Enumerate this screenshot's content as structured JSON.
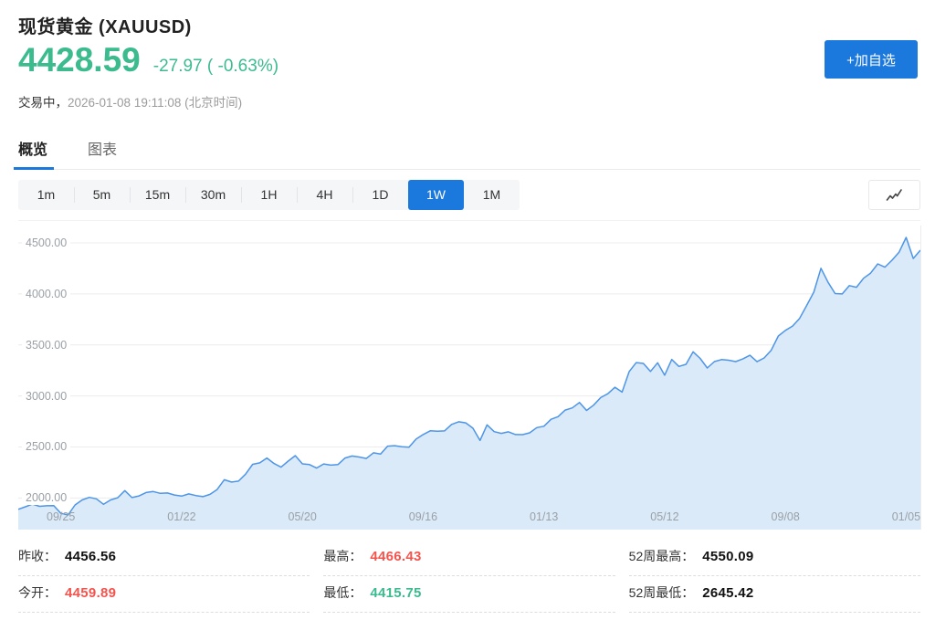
{
  "colors": {
    "accent_blue": "#1b78dc",
    "green": "#3bbb8e",
    "red": "#f4544d",
    "default_value": "#111111",
    "chart_line": "#4d95e7",
    "chart_fill": "#dbeaf9",
    "grid": "#ececec"
  },
  "header": {
    "title": "现货黄金 (XAUUSD)",
    "price": "4428.59",
    "change": "-27.97 ( -0.63%)",
    "status_label": "交易中，",
    "status_time": "2026-01-08 19:11:08 (北京时间)",
    "add_watchlist_label": "+加自选"
  },
  "tabs": [
    {
      "id": "overview",
      "label": "概览",
      "active": true
    },
    {
      "id": "chart",
      "label": "图表",
      "active": false
    }
  ],
  "timeframes": {
    "options": [
      "1m",
      "5m",
      "15m",
      "30m",
      "1H",
      "4H",
      "1D",
      "1W",
      "1M"
    ],
    "active": "1W"
  },
  "chart_data": {
    "type": "area",
    "series_name": "XAUUSD 1W",
    "grid": "horizontal",
    "legend": "none",
    "ylim": [
      1690,
      4670
    ],
    "y_ticks": [
      {
        "value": 4500,
        "label": "4500.00"
      },
      {
        "value": 4000,
        "label": "4000.00"
      },
      {
        "value": 3500,
        "label": "3500.00"
      },
      {
        "value": 3000,
        "label": "3000.00"
      },
      {
        "value": 2500,
        "label": "2500.00"
      },
      {
        "value": 2000,
        "label": "2000.00"
      }
    ],
    "x_ticks": [
      {
        "index": 6,
        "label": "09/25"
      },
      {
        "index": 23,
        "label": "01/22"
      },
      {
        "index": 40,
        "label": "05/20"
      },
      {
        "index": 57,
        "label": "09/16"
      },
      {
        "index": 74,
        "label": "01/13"
      },
      {
        "index": 91,
        "label": "05/12"
      },
      {
        "index": 108,
        "label": "09/08"
      },
      {
        "index": 125,
        "label": "01/05"
      }
    ],
    "values": [
      1889,
      1914,
      1940,
      1918,
      1924,
      1925,
      1849,
      1833,
      1932,
      1981,
      2006,
      1992,
      1938,
      1981,
      2002,
      2072,
      2004,
      2020,
      2053,
      2063,
      2045,
      2049,
      2029,
      2018,
      2040,
      2024,
      2013,
      2035,
      2083,
      2179,
      2156,
      2165,
      2233,
      2330,
      2344,
      2392,
      2338,
      2302,
      2361,
      2415,
      2334,
      2327,
      2293,
      2333,
      2322,
      2327,
      2392,
      2411,
      2401,
      2387,
      2443,
      2431,
      2508,
      2512,
      2503,
      2497,
      2577,
      2622,
      2658,
      2654,
      2657,
      2721,
      2747,
      2736,
      2684,
      2563,
      2716,
      2650,
      2633,
      2648,
      2622,
      2621,
      2639,
      2690,
      2703,
      2771,
      2797,
      2861,
      2883,
      2936,
      2858,
      2910,
      2984,
      3022,
      3085,
      3038,
      3237,
      3327,
      3319,
      3240,
      3325,
      3203,
      3357,
      3289,
      3310,
      3432,
      3368,
      3274,
      3337,
      3356,
      3350,
      3337,
      3363,
      3398,
      3336,
      3372,
      3448,
      3587,
      3643,
      3685,
      3760,
      3887,
      4018,
      4251,
      4113,
      4003,
      4000,
      4081,
      4065,
      4154,
      4204,
      4294,
      4262,
      4330,
      4410,
      4554,
      4347,
      4428.59
    ]
  },
  "stats": {
    "columns": [
      {
        "rows": [
          {
            "label": "昨收：",
            "value": "4456.56",
            "color": "default"
          },
          {
            "label": "今开：",
            "value": "4459.89",
            "color": "red"
          }
        ]
      },
      {
        "rows": [
          {
            "label": "最高：",
            "value": "4466.43",
            "color": "red"
          },
          {
            "label": "最低：",
            "value": "4415.75",
            "color": "green"
          }
        ]
      },
      {
        "rows": [
          {
            "label": "52周最高：",
            "value": "4550.09",
            "color": "default"
          },
          {
            "label": "52周最低：",
            "value": "2645.42",
            "color": "default"
          }
        ]
      }
    ]
  }
}
